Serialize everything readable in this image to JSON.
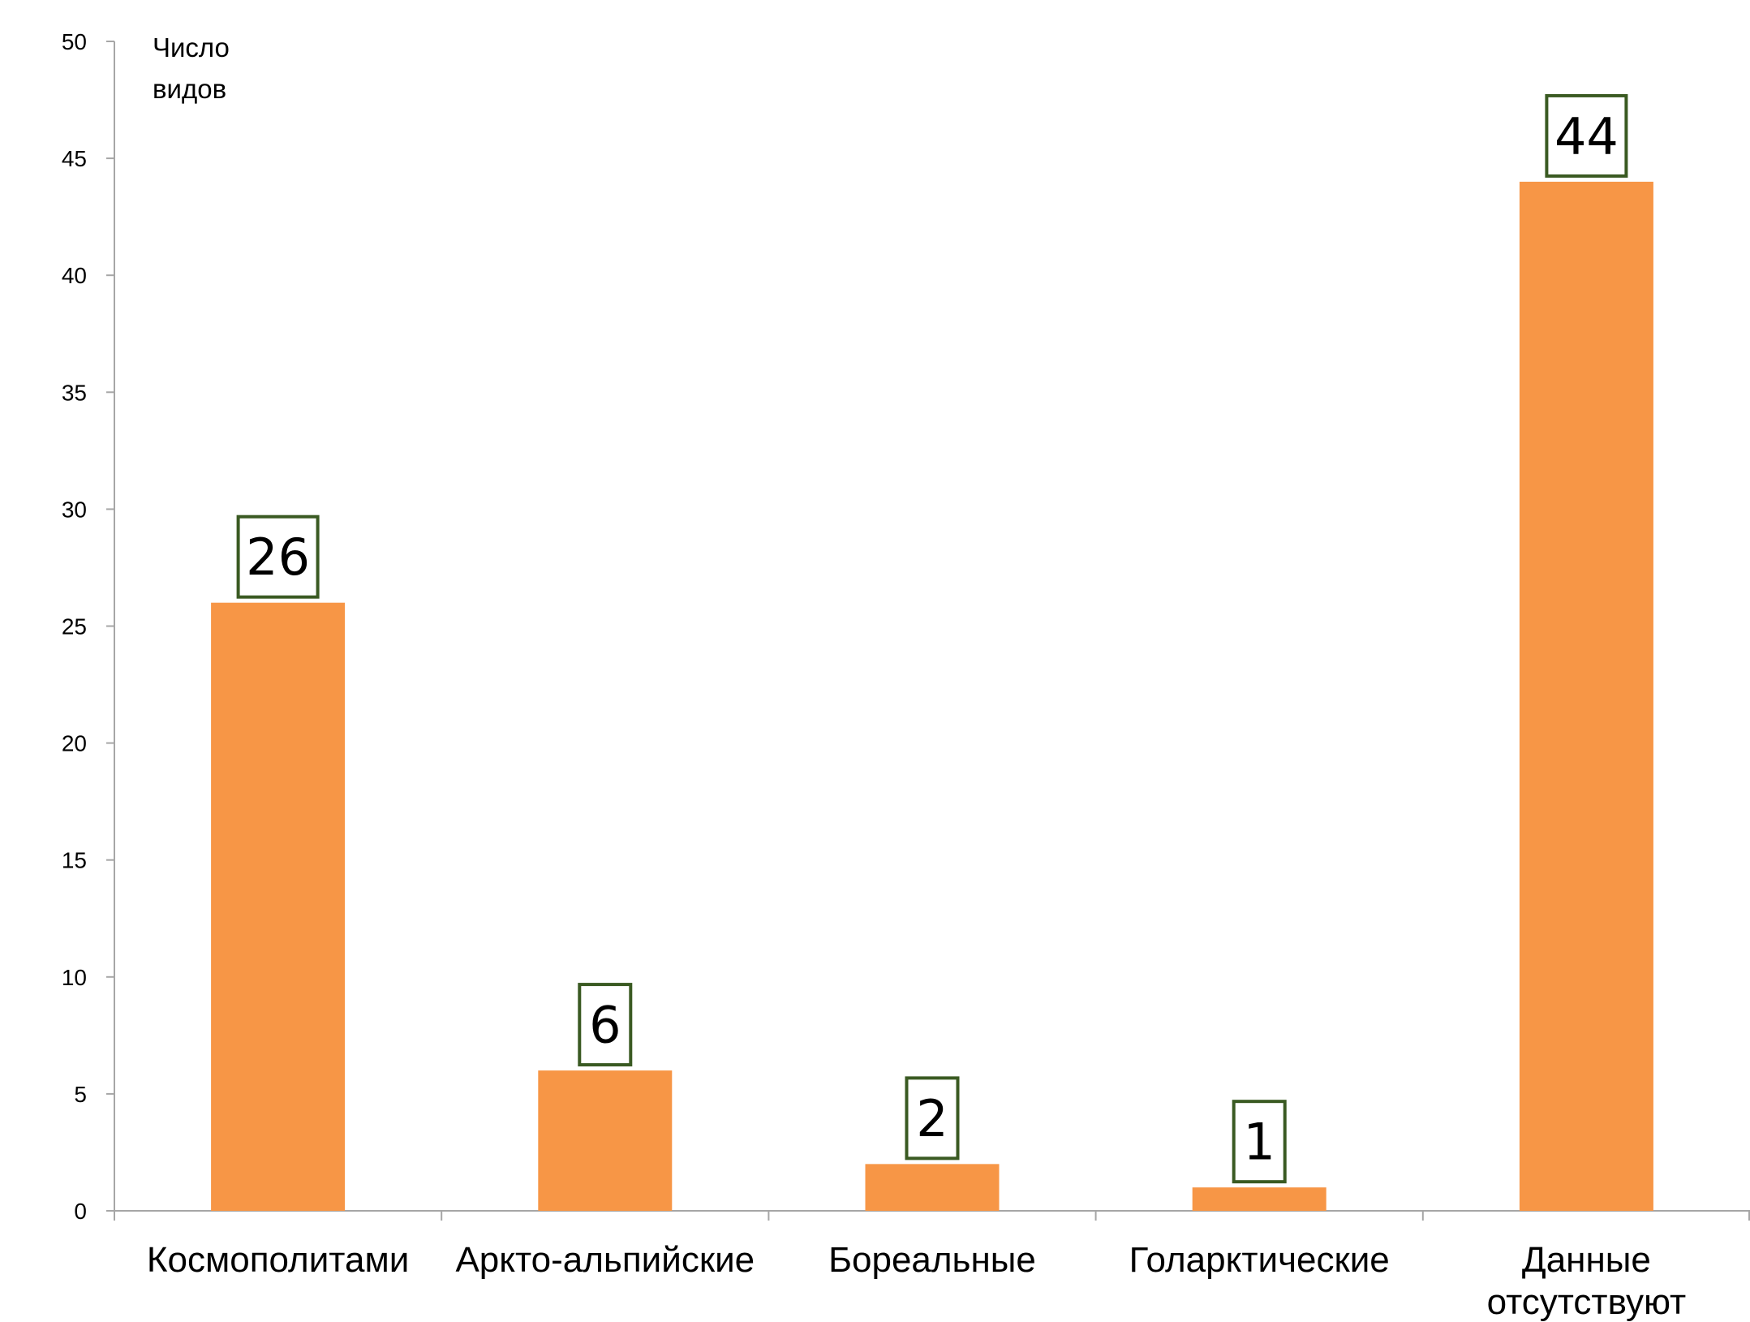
{
  "chart_data": {
    "type": "bar",
    "ylabel_lines": [
      "Число",
      "видов"
    ],
    "categories": [
      [
        "Космополитами"
      ],
      [
        "Аркто-альпийские"
      ],
      [
        "Бореальные"
      ],
      [
        "Голарктические"
      ],
      [
        "Данные",
        "отсутствуют"
      ]
    ],
    "values": [
      26,
      6,
      2,
      1,
      44
    ],
    "ylim": [
      0,
      50
    ],
    "yticks": [
      0,
      5,
      10,
      15,
      20,
      25,
      30,
      35,
      40,
      45,
      50
    ],
    "grid": false,
    "legend": "none",
    "colors": {
      "bar": "#F79646",
      "label_border": "#3A5A22",
      "axis": "#A6A6A6"
    }
  }
}
